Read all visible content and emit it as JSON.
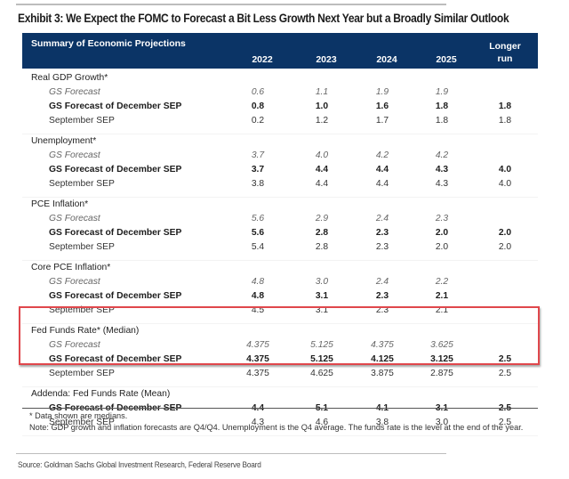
{
  "title": "Exhibit 3: We Expect the FOMC to Forecast a Bit Less Growth Next Year but a Broadly Similar Outlook",
  "header": {
    "label": "Summary of Economic Projections",
    "columns": [
      "2022",
      "2023",
      "2024",
      "2025"
    ],
    "longer_run_line1": "Longer",
    "longer_run_line2": "run"
  },
  "sections": [
    {
      "title": "Real GDP Growth*",
      "rows": [
        {
          "label": "GS Forecast",
          "style": "gs",
          "values": [
            "0.6",
            "1.1",
            "1.9",
            "1.9",
            ""
          ]
        },
        {
          "label": "GS Forecast of December SEP",
          "style": "dec",
          "values": [
            "0.8",
            "1.0",
            "1.6",
            "1.8",
            "1.8"
          ]
        },
        {
          "label": "September SEP",
          "style": "sep",
          "values": [
            "0.2",
            "1.2",
            "1.7",
            "1.8",
            "1.8"
          ]
        }
      ]
    },
    {
      "title": "Unemployment*",
      "rows": [
        {
          "label": "GS Forecast",
          "style": "gs",
          "values": [
            "3.7",
            "4.0",
            "4.2",
            "4.2",
            ""
          ]
        },
        {
          "label": "GS Forecast of December SEP",
          "style": "dec",
          "values": [
            "3.7",
            "4.4",
            "4.4",
            "4.3",
            "4.0"
          ]
        },
        {
          "label": "September SEP",
          "style": "sep",
          "values": [
            "3.8",
            "4.4",
            "4.4",
            "4.3",
            "4.0"
          ]
        }
      ]
    },
    {
      "title": "PCE Inflation*",
      "rows": [
        {
          "label": "GS Forecast",
          "style": "gs",
          "values": [
            "5.6",
            "2.9",
            "2.4",
            "2.3",
            ""
          ]
        },
        {
          "label": "GS Forecast of December SEP",
          "style": "dec",
          "values": [
            "5.6",
            "2.8",
            "2.3",
            "2.0",
            "2.0"
          ]
        },
        {
          "label": "September SEP",
          "style": "sep",
          "values": [
            "5.4",
            "2.8",
            "2.3",
            "2.0",
            "2.0"
          ]
        }
      ]
    },
    {
      "title": "Core PCE Inflation*",
      "rows": [
        {
          "label": "GS Forecast",
          "style": "gs",
          "values": [
            "4.8",
            "3.0",
            "2.4",
            "2.2",
            ""
          ]
        },
        {
          "label": "GS Forecast of December SEP",
          "style": "dec",
          "values": [
            "4.8",
            "3.1",
            "2.3",
            "2.1",
            ""
          ]
        },
        {
          "label": "September SEP",
          "style": "sep",
          "values": [
            "4.5",
            "3.1",
            "2.3",
            "2.1",
            ""
          ]
        }
      ]
    },
    {
      "title": "Fed Funds Rate* (Median)",
      "highlighted": true,
      "rows": [
        {
          "label": "GS Forecast",
          "style": "gs",
          "values": [
            "4.375",
            "5.125",
            "4.375",
            "3.625",
            ""
          ]
        },
        {
          "label": "GS Forecast of December SEP",
          "style": "dec",
          "values": [
            "4.375",
            "5.125",
            "4.125",
            "3.125",
            "2.5"
          ]
        },
        {
          "label": "September SEP",
          "style": "sep",
          "values": [
            "4.375",
            "4.625",
            "3.875",
            "2.875",
            "2.5"
          ]
        }
      ]
    },
    {
      "title": "Addenda: Fed Funds Rate (Mean)",
      "rows": [
        {
          "label": "GS Forecast of December SEP",
          "style": "dec",
          "values": [
            "4.4",
            "5.1",
            "4.1",
            "3.1",
            "2.5"
          ]
        },
        {
          "label": "September SEP",
          "style": "sep",
          "values": [
            "4.3",
            "4.6",
            "3.8",
            "3.0",
            "2.5"
          ]
        }
      ]
    }
  ],
  "highlight_color": "#e0474c",
  "header_color": "#0b3466",
  "footnote": "* Data shown are medians.",
  "note": "Note: GDP growth and inflation forecasts are Q4/Q4.  Unemployment is the Q4 average.  The funds rate is the level at the end of the year.",
  "source": "Source: Goldman Sachs Global Investment Research, Federal Reserve Board"
}
